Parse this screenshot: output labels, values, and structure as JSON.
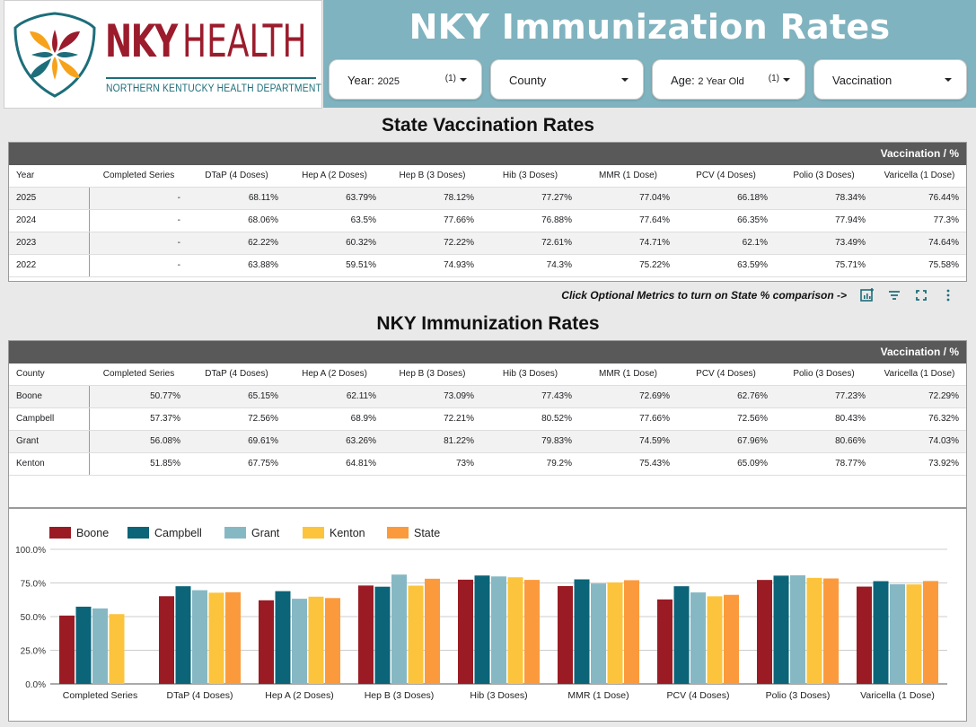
{
  "header": {
    "title": "NKY Immunization Rates",
    "logo": {
      "brand_bold": "NKY",
      "brand_light": "HEALTH",
      "tagline": "NORTHERN KENTUCKY HEALTH DEPARTMENT",
      "icon": "nky-health-shield-logo"
    }
  },
  "filters": [
    {
      "label": "Year",
      "value": "2025",
      "count": "(1)"
    },
    {
      "label": "County",
      "value": "",
      "count": ""
    },
    {
      "label": "Age",
      "value": "2 Year Old",
      "count": "(1)"
    },
    {
      "label": "Vaccination",
      "value": "",
      "count": ""
    }
  ],
  "colors": {
    "header_band": "#7fb3bf",
    "brand_red": "#9b1c2c",
    "brand_teal": "#1d6e7a",
    "table_band": "#595959"
  },
  "state_table": {
    "title": "State Vaccination Rates",
    "group_label": "Vaccination / %",
    "columns": [
      "Year",
      "Completed Series",
      "DTaP (4 Doses)",
      "Hep A (2 Doses)",
      "Hep B (3 Doses)",
      "Hib (3 Doses)",
      "MMR (1 Dose)",
      "PCV (4 Doses)",
      "Polio (3 Doses)",
      "Varicella (1 Dose)"
    ],
    "rows": [
      [
        "2025",
        "-",
        "68.11%",
        "63.79%",
        "78.12%",
        "77.27%",
        "77.04%",
        "66.18%",
        "78.34%",
        "76.44%"
      ],
      [
        "2024",
        "-",
        "68.06%",
        "63.5%",
        "77.66%",
        "76.88%",
        "77.64%",
        "66.35%",
        "77.94%",
        "77.3%"
      ],
      [
        "2023",
        "-",
        "62.22%",
        "60.32%",
        "72.22%",
        "72.61%",
        "74.71%",
        "62.1%",
        "73.49%",
        "74.64%"
      ],
      [
        "2022",
        "-",
        "63.88%",
        "59.51%",
        "74.93%",
        "74.3%",
        "75.22%",
        "63.59%",
        "75.71%",
        "75.58%"
      ]
    ]
  },
  "toolbar": {
    "note": "Click Optional Metrics to turn on State % comparison ->",
    "icons": [
      "optional-metrics-icon",
      "filter-icon",
      "fullscreen-icon",
      "more-options-icon"
    ]
  },
  "county_table": {
    "title": "NKY Immunization Rates",
    "group_label": "Vaccination / %",
    "columns": [
      "County",
      "Completed Series",
      "DTaP (4 Doses)",
      "Hep A (2 Doses)",
      "Hep B (3 Doses)",
      "Hib (3 Doses)",
      "MMR (1 Dose)",
      "PCV (4 Doses)",
      "Polio (3 Doses)",
      "Varicella (1 Dose)"
    ],
    "rows": [
      [
        "Boone",
        "50.77%",
        "65.15%",
        "62.11%",
        "73.09%",
        "77.43%",
        "72.69%",
        "62.76%",
        "77.23%",
        "72.29%"
      ],
      [
        "Campbell",
        "57.37%",
        "72.56%",
        "68.9%",
        "72.21%",
        "80.52%",
        "77.66%",
        "72.56%",
        "80.43%",
        "76.32%"
      ],
      [
        "Grant",
        "56.08%",
        "69.61%",
        "63.26%",
        "81.22%",
        "79.83%",
        "74.59%",
        "67.96%",
        "80.66%",
        "74.03%"
      ],
      [
        "Kenton",
        "51.85%",
        "67.75%",
        "64.81%",
        "73%",
        "79.2%",
        "75.43%",
        "65.09%",
        "78.77%",
        "73.92%"
      ]
    ]
  },
  "chart_data": {
    "type": "bar",
    "categories": [
      "Completed Series",
      "DTaP (4 Doses)",
      "Hep A (2 Doses)",
      "Hep B (3 Doses)",
      "Hib (3 Doses)",
      "MMR (1 Dose)",
      "PCV (4 Doses)",
      "Polio (3 Doses)",
      "Varicella (1 Dose)"
    ],
    "series": [
      {
        "name": "Boone",
        "color": "#9b1b24",
        "values": [
          50.77,
          65.15,
          62.11,
          73.09,
          77.43,
          72.69,
          62.76,
          77.23,
          72.29
        ]
      },
      {
        "name": "Campbell",
        "color": "#0b6478",
        "values": [
          57.37,
          72.56,
          68.9,
          72.21,
          80.52,
          77.66,
          72.56,
          80.43,
          76.32
        ]
      },
      {
        "name": "Grant",
        "color": "#86b8c4",
        "values": [
          56.08,
          69.61,
          63.26,
          81.22,
          79.83,
          74.59,
          67.96,
          80.66,
          74.03
        ]
      },
      {
        "name": "Kenton",
        "color": "#fcc43c",
        "values": [
          51.85,
          67.75,
          64.81,
          73,
          79.2,
          75.43,
          65.09,
          78.77,
          73.92
        ]
      },
      {
        "name": "State",
        "color": "#fb9a3c",
        "values": [
          null,
          68.11,
          63.79,
          78.12,
          77.27,
          77.04,
          66.18,
          78.34,
          76.44
        ]
      }
    ],
    "y_ticks": [
      "0.0%",
      "25.0%",
      "50.0%",
      "75.0%",
      "100.0%"
    ],
    "ylim": [
      0,
      100
    ],
    "legend_position": "top-left",
    "grid": true
  }
}
